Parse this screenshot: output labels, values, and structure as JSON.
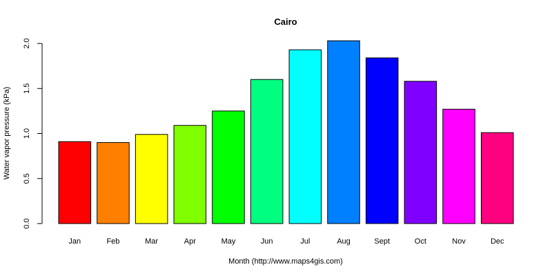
{
  "chart_data": {
    "type": "bar",
    "title": "Cairo",
    "xlabel": "Month (http://www.maps4gis.com)",
    "ylabel": "Water vapor pressure (kPa)",
    "categories": [
      "Jan",
      "Feb",
      "Mar",
      "Apr",
      "May",
      "Jun",
      "Jul",
      "Aug",
      "Sept",
      "Oct",
      "Nov",
      "Dec"
    ],
    "values": [
      0.91,
      0.9,
      0.99,
      1.09,
      1.25,
      1.6,
      1.93,
      2.03,
      1.84,
      1.58,
      1.27,
      1.01
    ],
    "colors": [
      "#FF0000",
      "#FF8000",
      "#FFFF00",
      "#80FF00",
      "#00FF00",
      "#00FF80",
      "#00FFFF",
      "#0080FF",
      "#0000FF",
      "#8000FF",
      "#FF00FF",
      "#FF0080"
    ],
    "ylim": [
      0,
      2.0
    ],
    "yticks": [
      "0.0",
      "0.5",
      "1.0",
      "1.5",
      "2.0"
    ],
    "grid": false,
    "legend": "none"
  }
}
